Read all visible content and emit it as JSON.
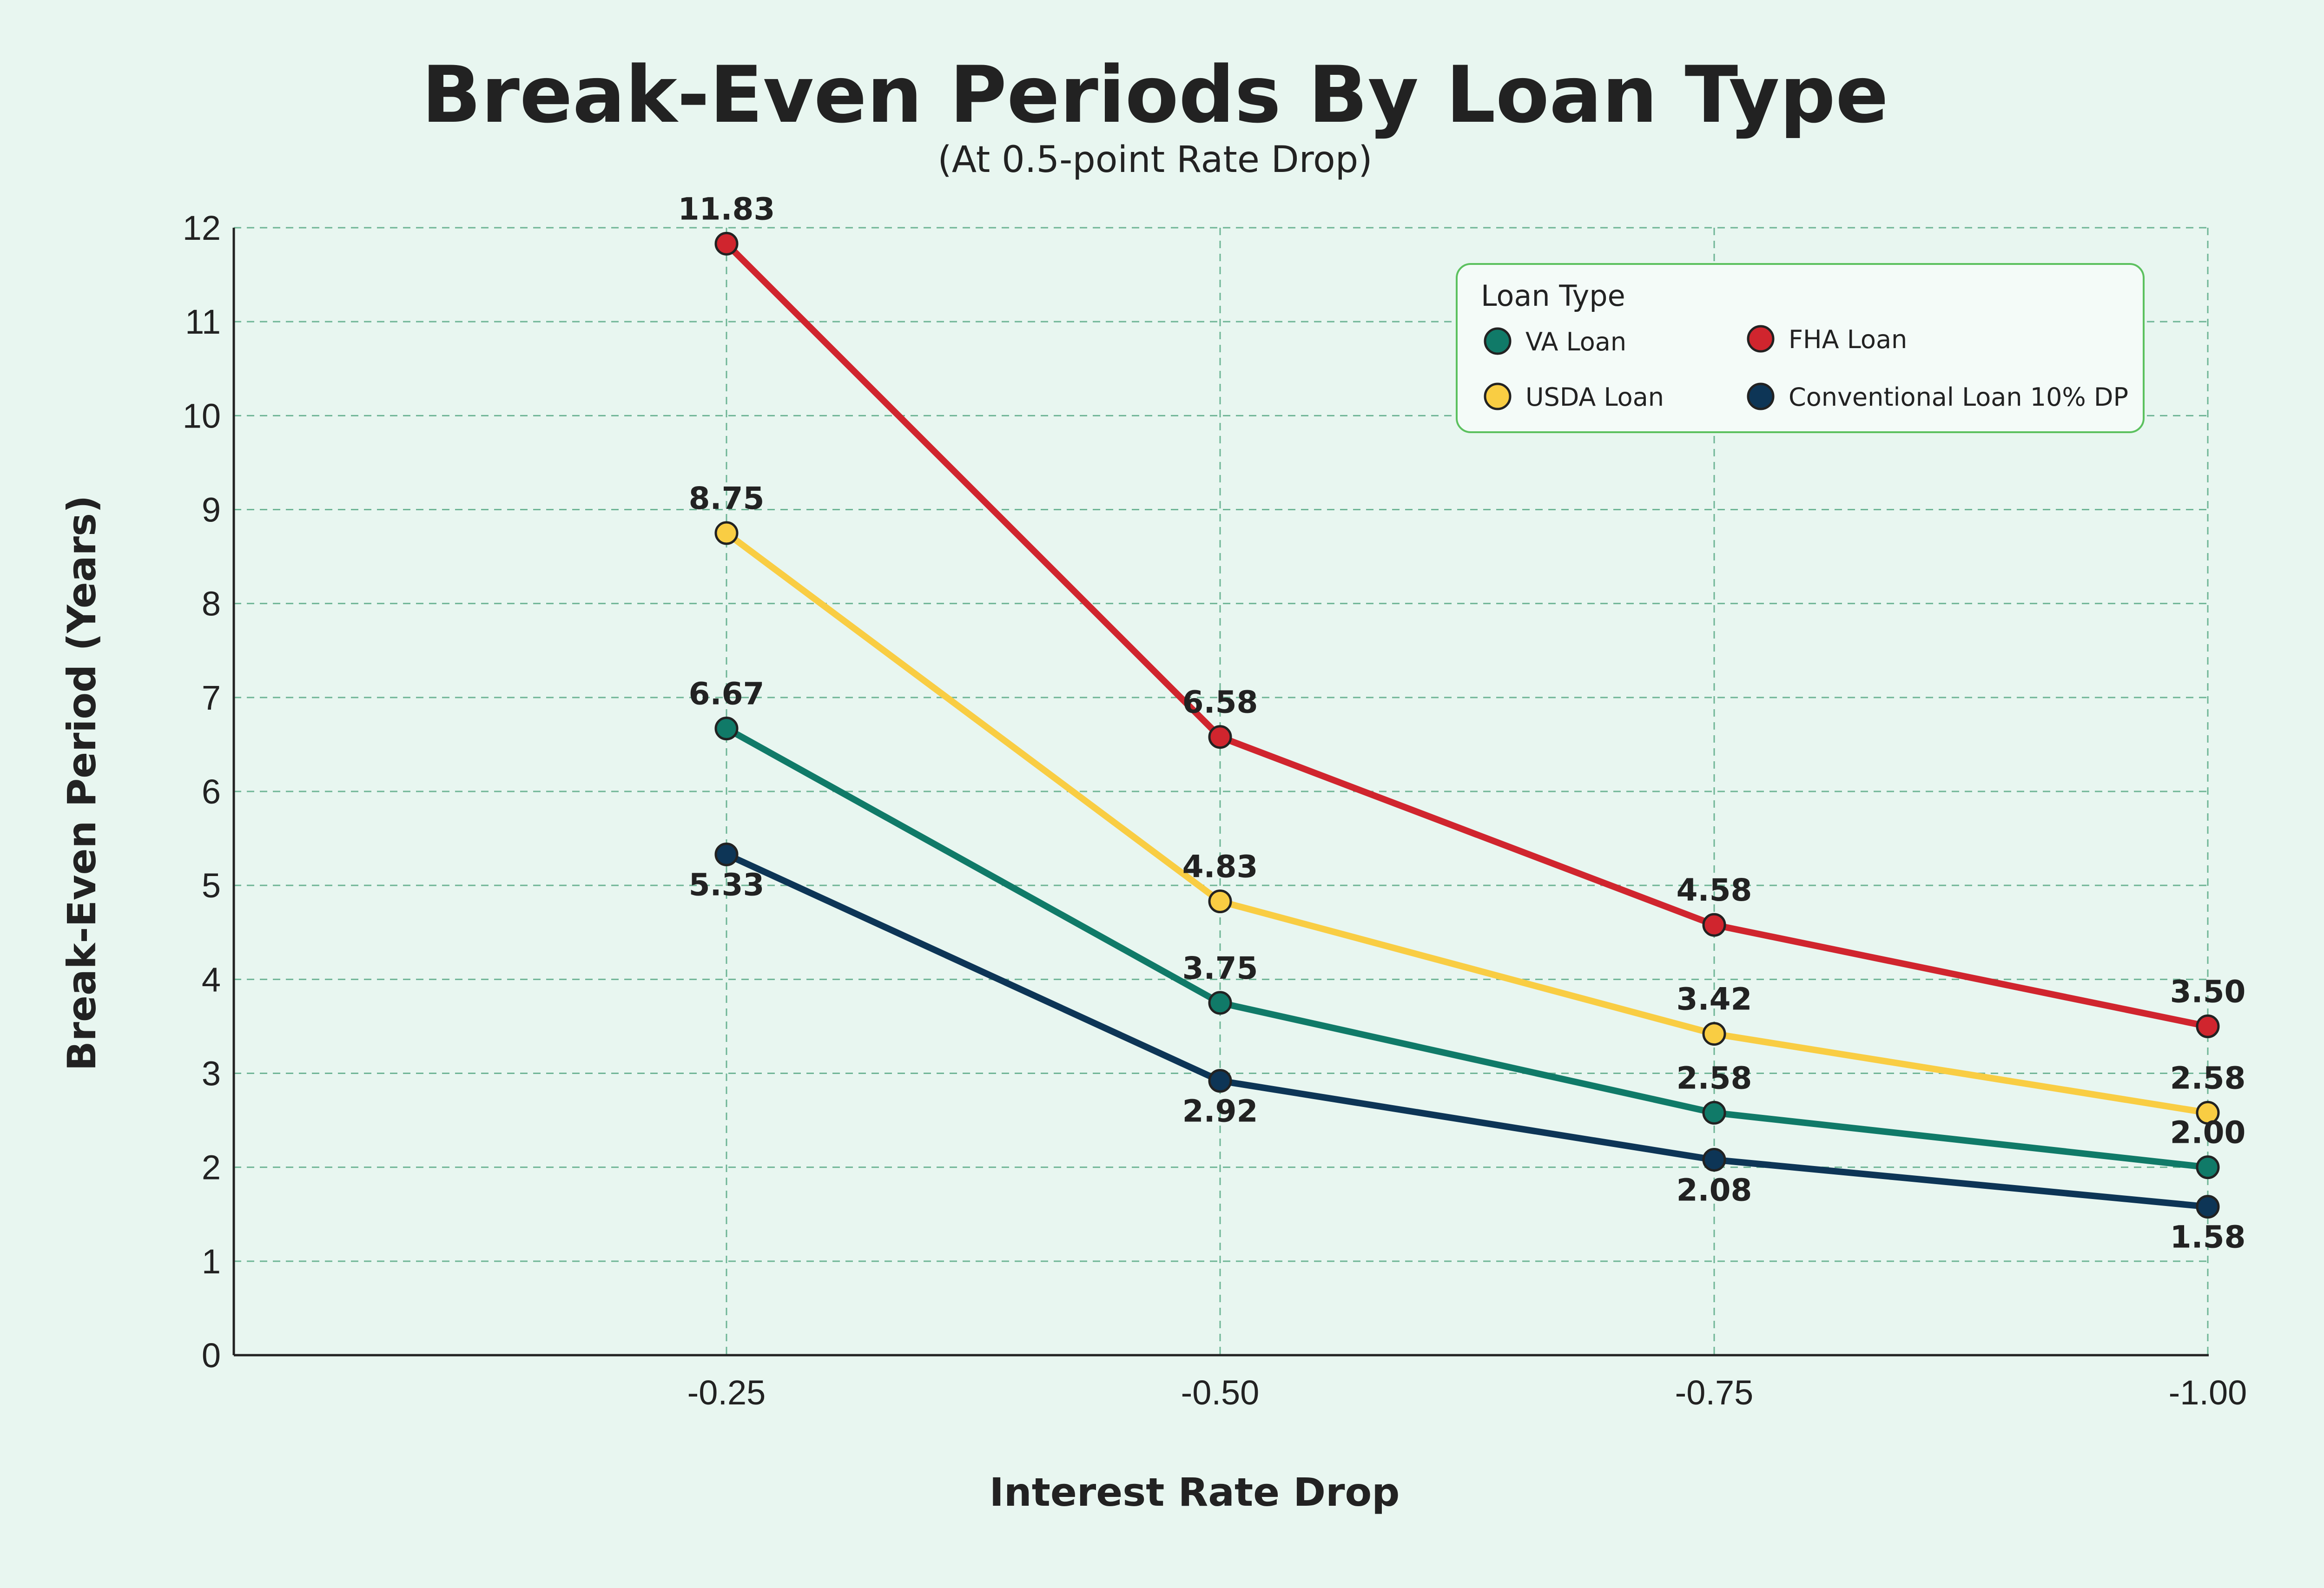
{
  "chart_data": {
    "type": "line",
    "title": "Break-Even Periods By Loan Type",
    "subtitle": "(At 0.5-point Rate Drop)",
    "xlabel": "Interest Rate Drop",
    "ylabel": "Break-Even Period (Years)",
    "categories": [
      "-0.25",
      "-0.50",
      "-0.75",
      "-1.00"
    ],
    "ylim": [
      0,
      12
    ],
    "yticks": [
      "0",
      "1",
      "2",
      "3",
      "4",
      "5",
      "6",
      "7",
      "8",
      "9",
      "10",
      "11",
      "12"
    ],
    "grid": true,
    "legend": {
      "title": "Loan Type",
      "placement": "top-right"
    },
    "series": [
      {
        "name": "FHA Loan",
        "color": "#d0252e",
        "values": [
          11.83,
          6.58,
          4.58,
          3.5
        ],
        "labels": [
          "11.83",
          "6.58",
          "4.58",
          "3.50"
        ],
        "label_pos": [
          "above",
          "above",
          "above",
          "above"
        ]
      },
      {
        "name": "USDA Loan",
        "color": "#f9cd43",
        "values": [
          8.75,
          4.83,
          3.42,
          2.58
        ],
        "labels": [
          "8.75",
          "4.83",
          "3.42",
          "2.58"
        ],
        "label_pos": [
          "above",
          "above",
          "above",
          "above"
        ]
      },
      {
        "name": "VA Loan",
        "color": "#107a68",
        "values": [
          6.67,
          3.75,
          2.58,
          2.0
        ],
        "labels": [
          "6.67",
          "3.75",
          "2.58",
          "2.00"
        ],
        "label_pos": [
          "above",
          "above",
          "above",
          "above"
        ]
      },
      {
        "name": "Conventional Loan 10% DP",
        "color": "#0d3556",
        "values": [
          5.33,
          2.92,
          2.08,
          1.58
        ],
        "labels": [
          "5.33",
          "2.92",
          "2.08",
          "1.58"
        ],
        "label_pos": [
          "below",
          "below",
          "below",
          "below"
        ]
      }
    ],
    "legend_order": [
      "VA Loan",
      "FHA Loan",
      "USDA Loan",
      "Conventional Loan 10% DP"
    ]
  }
}
